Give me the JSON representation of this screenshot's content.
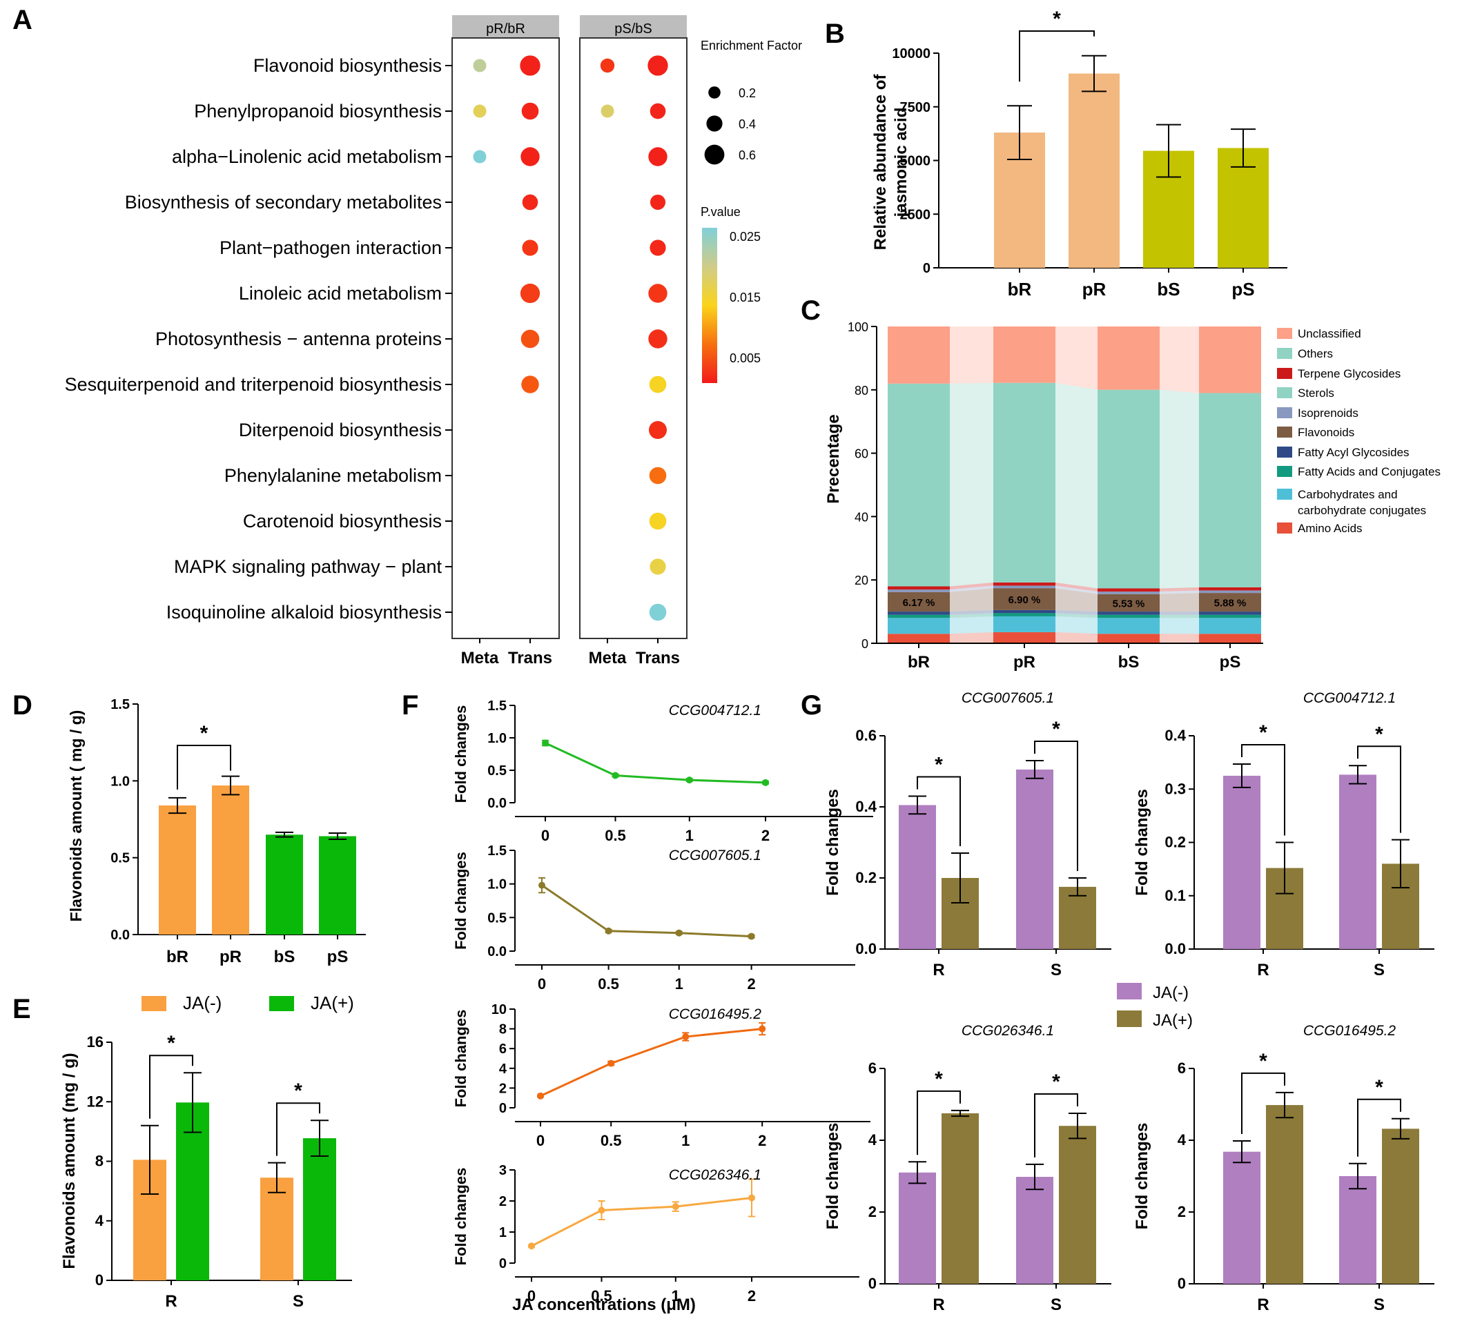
{
  "panel_labels": [
    "A",
    "B",
    "C",
    "D",
    "E",
    "F",
    "G"
  ],
  "colors": {
    "bR": "#F2B880",
    "pR": "#F2B880",
    "bS": "#C3C300",
    "pS": "#C3C300",
    "orange": "#F9A040",
    "green": "#0AB80A",
    "purple": "#B07FC0",
    "olive": "#8C7A3A",
    "f1": "#22BB22",
    "f2": "#8C7A2A",
    "f3": "#F06A10",
    "f4": "#F8A840"
  },
  "chart_data": [
    {
      "panel": "A",
      "type": "scatter",
      "facets": [
        "pR/bR",
        "pS/bS"
      ],
      "x_categories": [
        "Meta",
        "Trans"
      ],
      "pathways": [
        "Flavonoid biosynthesis",
        "Phenylpropanoid biosynthesis",
        "alpha−Linolenic acid metabolism",
        "Biosynthesis of secondary metabolites",
        "Plant−pathogen interaction",
        "Linoleic acid metabolism",
        "Photosynthesis − antenna proteins",
        "Sesquiterpenoid and triterpenoid biosynthesis",
        "Diterpenoid biosynthesis",
        "Phenylalanine metabolism",
        "Carotenoid biosynthesis",
        "MAPK signaling pathway − plant",
        "Isoquinoline alkaloid biosynthesis"
      ],
      "points": [
        {
          "facet": 0,
          "x": "Meta",
          "row": 0,
          "ef": 0.25,
          "p": 0.02
        },
        {
          "facet": 0,
          "x": "Trans",
          "row": 0,
          "ef": 0.62,
          "p": 0.0005
        },
        {
          "facet": 0,
          "x": "Meta",
          "row": 1,
          "ef": 0.25,
          "p": 0.016
        },
        {
          "facet": 0,
          "x": "Trans",
          "row": 1,
          "ef": 0.45,
          "p": 0.0008
        },
        {
          "facet": 0,
          "x": "Meta",
          "row": 2,
          "ef": 0.25,
          "p": 0.025
        },
        {
          "facet": 0,
          "x": "Trans",
          "row": 2,
          "ef": 0.55,
          "p": 0.0006
        },
        {
          "facet": 0,
          "x": "Trans",
          "row": 3,
          "ef": 0.38,
          "p": 0.001
        },
        {
          "facet": 0,
          "x": "Trans",
          "row": 4,
          "ef": 0.4,
          "p": 0.002
        },
        {
          "facet": 0,
          "x": "Trans",
          "row": 5,
          "ef": 0.58,
          "p": 0.0025
        },
        {
          "facet": 0,
          "x": "Trans",
          "row": 6,
          "ef": 0.52,
          "p": 0.004
        },
        {
          "facet": 0,
          "x": "Trans",
          "row": 7,
          "ef": 0.48,
          "p": 0.0045
        },
        {
          "facet": 1,
          "x": "Meta",
          "row": 0,
          "ef": 0.3,
          "p": 0.002
        },
        {
          "facet": 1,
          "x": "Trans",
          "row": 0,
          "ef": 0.62,
          "p": 0.0005
        },
        {
          "facet": 1,
          "x": "Meta",
          "row": 1,
          "ef": 0.25,
          "p": 0.017
        },
        {
          "facet": 1,
          "x": "Trans",
          "row": 1,
          "ef": 0.38,
          "p": 0.0007
        },
        {
          "facet": 1,
          "x": "Trans",
          "row": 2,
          "ef": 0.55,
          "p": 0.0005
        },
        {
          "facet": 1,
          "x": "Trans",
          "row": 3,
          "ef": 0.36,
          "p": 0.0008
        },
        {
          "facet": 1,
          "x": "Trans",
          "row": 4,
          "ef": 0.4,
          "p": 0.001
        },
        {
          "facet": 1,
          "x": "Trans",
          "row": 5,
          "ef": 0.55,
          "p": 0.002
        },
        {
          "facet": 1,
          "x": "Trans",
          "row": 6,
          "ef": 0.55,
          "p": 0.0015
        },
        {
          "facet": 1,
          "x": "Trans",
          "row": 7,
          "ef": 0.45,
          "p": 0.013
        },
        {
          "facet": 1,
          "x": "Trans",
          "row": 8,
          "ef": 0.5,
          "p": 0.0015
        },
        {
          "facet": 1,
          "x": "Trans",
          "row": 9,
          "ef": 0.45,
          "p": 0.006
        },
        {
          "facet": 1,
          "x": "Trans",
          "row": 10,
          "ef": 0.45,
          "p": 0.013
        },
        {
          "facet": 1,
          "x": "Trans",
          "row": 11,
          "ef": 0.4,
          "p": 0.015
        },
        {
          "facet": 1,
          "x": "Trans",
          "row": 12,
          "ef": 0.45,
          "p": 0.025
        }
      ],
      "size_legend_title": "Enrichment Factor",
      "size_legend": [
        "0.2",
        "0.4",
        "0.6"
      ],
      "color_legend_title": "P.value",
      "color_legend_ticks": [
        "0.025",
        "0.015",
        "0.005"
      ],
      "color_range": [
        0,
        0.025
      ]
    },
    {
      "panel": "B",
      "type": "bar",
      "categories": [
        "bR",
        "pR",
        "bS",
        "pS"
      ],
      "values": [
        6300,
        9050,
        5450,
        5580
      ],
      "errors": [
        1250,
        830,
        1220,
        880
      ],
      "ylabel": [
        "Relative abundance of",
        "jasmonic acid"
      ],
      "ylim": [
        0,
        10000
      ],
      "yticks": [
        "0",
        "2500",
        "5000",
        "7500",
        "10000"
      ],
      "significance": [
        {
          "a": 0,
          "b": 1,
          "label": "*"
        }
      ]
    },
    {
      "panel": "C",
      "type": "bar",
      "stacked": true,
      "categories": [
        "bR",
        "pR",
        "bS",
        "pS"
      ],
      "ylabel": "Precentage",
      "ylim": [
        0,
        100
      ],
      "yticks": [
        "0",
        "20",
        "40",
        "60",
        "80",
        "100"
      ],
      "series": [
        {
          "name": "Amino Acids",
          "color": "#E8503A",
          "values": [
            3,
            3.5,
            3,
            3
          ]
        },
        {
          "name": "Carbohydrates and carbohydrate conjugates",
          "color": "#4FBFD8",
          "values": [
            5,
            5,
            5,
            5
          ]
        },
        {
          "name": "Fatty Acids and Conjugates",
          "color": "#129A80",
          "values": [
            1,
            1,
            1,
            1
          ]
        },
        {
          "name": "Fatty Acyl Glycosides",
          "color": "#2F4A86",
          "values": [
            1,
            1,
            1,
            1
          ]
        },
        {
          "name": "Flavonoids",
          "color": "#7D5C44",
          "values": [
            6.17,
            6.9,
            5.53,
            5.88
          ]
        },
        {
          "name": "Isoprenoids",
          "color": "#8898C0",
          "values": [
            0.8,
            0.8,
            0.8,
            0.8
          ]
        },
        {
          "name": "Terpene Glycosides",
          "color": "#CC1A1A",
          "values": [
            1,
            1,
            1,
            1
          ]
        },
        {
          "name": "Sterols",
          "color": "#90D3C3",
          "values": [
            64,
            63,
            62.7,
            61.3
          ]
        },
        {
          "name": "Others",
          "color": "#90D3C3",
          "values": [
            0,
            0,
            0,
            0
          ]
        },
        {
          "name": "Unclassified",
          "color": "#FCA088",
          "values": [
            18.03,
            17.8,
            19.97,
            21.02
          ]
        }
      ],
      "flavonoid_labels": [
        "6.17 %",
        "6.90 %",
        "5.53 %",
        "5.88 %"
      ],
      "legend_order": [
        "Unclassified",
        "Others",
        "Terpene Glycosides",
        "Sterols",
        "Isoprenoids",
        "Flavonoids",
        "Fatty Acyl Glycosides",
        "Fatty Acids and Conjugates",
        "Carbohydrates and\ncarbohydrate conjugates",
        "Amino Acids"
      ]
    },
    {
      "panel": "D",
      "type": "bar",
      "categories": [
        "bR",
        "pR",
        "bS",
        "pS"
      ],
      "values": [
        0.84,
        0.97,
        0.65,
        0.64
      ],
      "errors": [
        0.05,
        0.06,
        0.015,
        0.02
      ],
      "ylabel": "Flavonoids amount ( mg / g)",
      "ylim": [
        0,
        1.5
      ],
      "yticks": [
        "0.0",
        "0.5",
        "1.0",
        "1.5"
      ],
      "significance": [
        {
          "a": 0,
          "b": 1,
          "label": "*"
        }
      ]
    },
    {
      "panel": "E",
      "type": "bar",
      "categories": [
        "R",
        "S"
      ],
      "series": [
        {
          "name": "JA(-)",
          "values": [
            8.1,
            6.9
          ],
          "errors": [
            2.3,
            1.0
          ]
        },
        {
          "name": "JA(+)",
          "values": [
            11.95,
            9.55
          ],
          "errors": [
            2.0,
            1.2
          ]
        }
      ],
      "ylabel": "Flavonoids amount  (mg / g)",
      "ylim": [
        0,
        16
      ],
      "yticks": [
        "0",
        "4",
        "8",
        "12",
        "16"
      ],
      "significance": [
        "*",
        "*"
      ]
    },
    {
      "panel": "F",
      "type": "line",
      "xlabel": "JA concentrations (μM)",
      "ylabel": "Fold changes",
      "x": [
        0,
        0.5,
        1,
        2
      ],
      "xticks": [
        "0",
        "0.5",
        "1",
        "2"
      ],
      "subplots": [
        {
          "title": "CCG004712.1",
          "y": [
            0.92,
            0.42,
            0.35,
            0.31
          ],
          "err": [
            0.04,
            0.02,
            0.02,
            0.02
          ],
          "ylim": [
            0,
            1.5
          ],
          "yticks": [
            "0.0",
            "0.5",
            "1.0",
            "1.5"
          ]
        },
        {
          "title": "CCG007605.1",
          "y": [
            0.98,
            0.3,
            0.27,
            0.22
          ],
          "err": [
            0.11,
            0.02,
            0.02,
            0.02
          ],
          "ylim": [
            0,
            1.5
          ],
          "yticks": [
            "0.0",
            "0.5",
            "1.0",
            "1.5"
          ]
        },
        {
          "title": "CCG016495.2",
          "y": [
            1.2,
            4.5,
            7.2,
            8.0
          ],
          "err": [
            0.1,
            0.2,
            0.4,
            0.6
          ],
          "ylim": [
            0,
            10
          ],
          "yticks": [
            "0",
            "2",
            "4",
            "6",
            "8",
            "10"
          ]
        },
        {
          "title": "CCG026346.1",
          "y": [
            0.55,
            1.7,
            1.82,
            2.1
          ],
          "err": [
            0.03,
            0.3,
            0.15,
            0.6
          ],
          "ylim": [
            0,
            3
          ],
          "yticks": [
            "0",
            "1",
            "2",
            "3"
          ]
        }
      ]
    },
    {
      "panel": "G",
      "type": "bar",
      "categories": [
        "R",
        "S"
      ],
      "ylabel": "Fold changes",
      "legend": [
        "JA(-)",
        "JA(+)"
      ],
      "subplots": [
        {
          "title": "CCG007605.1",
          "ja_minus": [
            0.405,
            0.505
          ],
          "ja_minus_err": [
            0.025,
            0.025
          ],
          "ja_plus": [
            0.2,
            0.175
          ],
          "ja_plus_err": [
            0.07,
            0.025
          ],
          "ylim": [
            0,
            0.6
          ],
          "yticks": [
            "0.0",
            "0.2",
            "0.4",
            "0.6"
          ]
        },
        {
          "title": "CCG004712.1",
          "ja_minus": [
            0.325,
            0.327
          ],
          "ja_minus_err": [
            0.022,
            0.017
          ],
          "ja_plus": [
            0.152,
            0.16
          ],
          "ja_plus_err": [
            0.048,
            0.045
          ],
          "ylim": [
            0,
            0.4
          ],
          "yticks": [
            "0.0",
            "0.1",
            "0.2",
            "0.3",
            "0.4"
          ]
        },
        {
          "title": "CCG026346.1",
          "ja_minus": [
            3.1,
            2.98
          ],
          "ja_minus_err": [
            0.3,
            0.35
          ],
          "ja_plus": [
            4.75,
            4.4
          ],
          "ja_plus_err": [
            0.08,
            0.35
          ],
          "ylim": [
            0,
            6
          ],
          "yticks": [
            "0",
            "2",
            "4",
            "6"
          ]
        },
        {
          "title": "CCG016495.2",
          "ja_minus": [
            3.68,
            3.0
          ],
          "ja_minus_err": [
            0.3,
            0.35
          ],
          "ja_plus": [
            4.98,
            4.32
          ],
          "ja_plus_err": [
            0.35,
            0.28
          ],
          "ylim": [
            0,
            6
          ],
          "yticks": [
            "0",
            "2",
            "4",
            "6"
          ]
        }
      ],
      "significance": "*"
    }
  ]
}
